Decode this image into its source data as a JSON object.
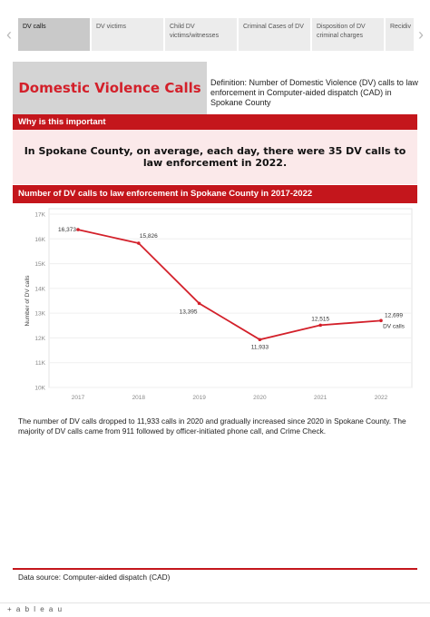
{
  "tabs": [
    {
      "label": "DV calls",
      "active": true
    },
    {
      "label": "DV victims",
      "active": false
    },
    {
      "label": "Child DV victims/witnesses",
      "active": false
    },
    {
      "label": "Criminal Cases of DV",
      "active": false
    },
    {
      "label": "Disposition of DV criminal charges",
      "active": false
    },
    {
      "label": "Recidiv",
      "active": false
    }
  ],
  "nav": {
    "prev_icon": "chevron-left-icon",
    "next_icon": "chevron-right-icon"
  },
  "header": {
    "title": "Domestic Violence Calls",
    "definition": "Definition: Number of Domestic Violence (DV) calls to law enforcement in Computer-aided dispatch (CAD) in Spokane County"
  },
  "why": {
    "heading": "Why is this important",
    "highlight": "In Spokane County, on average, each day, there were 35 DV calls to law enforcement in 2022."
  },
  "chart_heading": "Number of DV calls to law enforcement in Spokane County in 2017-2022",
  "chart_data": {
    "type": "line",
    "x": [
      "2017",
      "2018",
      "2019",
      "2020",
      "2021",
      "2022"
    ],
    "series": [
      {
        "name": "DV calls",
        "values": [
          16373,
          15826,
          13395,
          11933,
          12515,
          12699
        ]
      }
    ],
    "data_labels": [
      "16,373",
      "15,826",
      "13,395",
      "11,933",
      "12,515",
      "12,699"
    ],
    "xlabel": "",
    "ylabel": "Number of DV calls",
    "ylim": [
      10000,
      17000
    ],
    "yticks": [
      10000,
      11000,
      12000,
      13000,
      14000,
      15000,
      16000,
      17000
    ],
    "ytick_labels": [
      "10K",
      "11K",
      "12K",
      "13K",
      "14K",
      "15K",
      "16K",
      "17K"
    ],
    "grid": true,
    "line_color": "#d3202a"
  },
  "summary": "The number of DV calls dropped to 11,933 calls in 2020 and gradually increased since 2020 in Spokane County. The majority of DV calls came from 911 followed by officer-initiated phone call, and Crime Check.",
  "source": "Data source: Computer-aided dispatch (CAD)",
  "toolbar": {
    "logo": "+ a b l e a u"
  },
  "colors": {
    "accent": "#c4161c",
    "title": "#d3202a",
    "highlight_bg": "#fbe9ea"
  }
}
